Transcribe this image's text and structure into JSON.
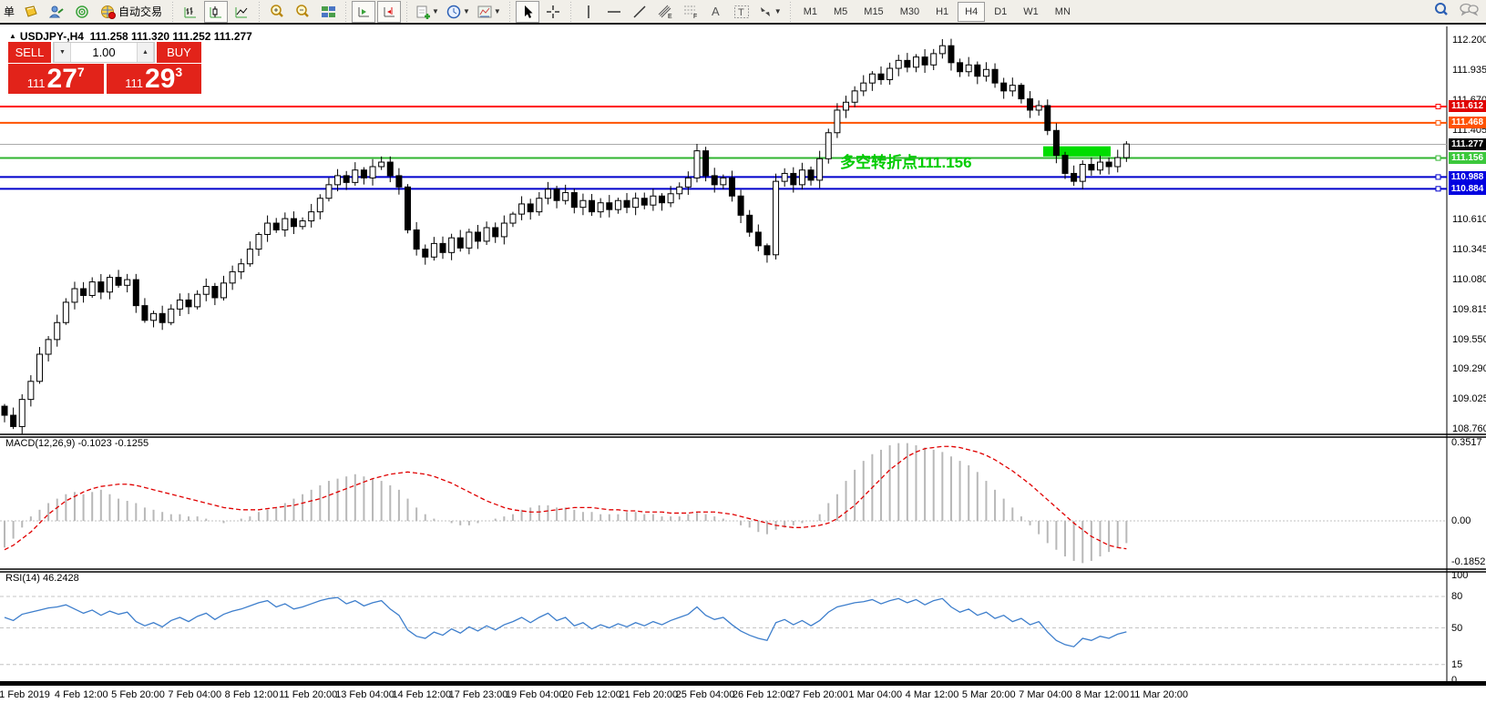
{
  "toolbar": {
    "order_button_label": "单",
    "auto_trading_label": "自动交易",
    "timeframes": [
      "M1",
      "M5",
      "M15",
      "M30",
      "H1",
      "H4",
      "D1",
      "W1",
      "MN"
    ],
    "active_timeframe": "H4",
    "icon_names": [
      "new-order",
      "history-book",
      "expert-advisor",
      "signals",
      "auto-trading",
      "bar-chart-mode",
      "candlestick-mode",
      "line-chart-mode",
      "zoom-in",
      "zoom-out",
      "tile-windows",
      "auto-scroll",
      "chart-shift",
      "new-chart",
      "periods",
      "templates",
      "cursor",
      "crosshair",
      "vertical-line",
      "horizontal-line",
      "trendline",
      "equidistant-channel",
      "fibonacci",
      "text",
      "text-label",
      "arrows",
      "search",
      "chat"
    ]
  },
  "chart_header": {
    "collapse_arrow": "▲",
    "symbol_title": "USDJPY-,H4",
    "ohlc": "111.258 111.320 111.252 111.277"
  },
  "trade_panel": {
    "sell_label": "SELL",
    "buy_label": "BUY",
    "volume_value": "1.00",
    "stepper_down": "▼",
    "stepper_up": "▲",
    "sell_price_prefix": "111",
    "sell_price_big": "27",
    "sell_price_sup": "7",
    "buy_price_prefix": "111",
    "buy_price_big": "29",
    "buy_price_sup": "3",
    "panel_color": "#e2231a"
  },
  "annotation": {
    "text": "多空转折点111.156",
    "color": "#00cc00"
  },
  "price_scale": {
    "ticks": [
      112.2,
      111.935,
      111.67,
      111.405,
      110.61,
      110.345,
      110.08,
      109.815,
      109.55,
      109.29,
      109.025,
      108.76
    ],
    "badges": [
      {
        "label": "111.612",
        "value": 111.612,
        "bg": "#e00000"
      },
      {
        "label": "111.468",
        "value": 111.468,
        "bg": "#ff5200"
      },
      {
        "label": "111.277",
        "value": 111.277,
        "bg": "#000000"
      },
      {
        "label": "111.156",
        "value": 111.156,
        "bg": "#3cc83c"
      },
      {
        "label": "110.988",
        "value": 110.988,
        "bg": "#0000e0"
      },
      {
        "label": "110.884",
        "value": 110.884,
        "bg": "#0000e0"
      }
    ]
  },
  "macd_pane": {
    "label": "MACD(12,26,9) -0.1023 -0.1255",
    "ticks": [
      {
        "v": 0.3517,
        "t": "0.3517"
      },
      {
        "v": 0.0,
        "t": "0.00"
      },
      {
        "v": -0.1852,
        "t": "-0.1852"
      }
    ]
  },
  "rsi_pane": {
    "label": "RSI(14) 46.2428",
    "ticks": [
      100,
      80,
      50,
      15,
      0
    ],
    "levels": [
      80,
      50,
      15
    ]
  },
  "time_axis": [
    "1 Feb 2019",
    "4 Feb 12:00",
    "5 Feb 20:00",
    "7 Feb 04:00",
    "8 Feb 12:00",
    "11 Feb 20:00",
    "13 Feb 04:00",
    "14 Feb 12:00",
    "17 Feb 23:00",
    "19 Feb 04:00",
    "20 Feb 12:00",
    "21 Feb 20:00",
    "25 Feb 04:00",
    "26 Feb 12:00",
    "27 Feb 20:00",
    "1 Mar 04:00",
    "4 Mar 12:00",
    "5 Mar 20:00",
    "7 Mar 04:00",
    "8 Mar 12:00",
    "11 Mar 20:00"
  ],
  "chart_data": [
    {
      "type": "candlestick",
      "title": "USDJPY- H4",
      "ylim": [
        108.76,
        112.33
      ],
      "closes": [
        108.88,
        108.78,
        109.02,
        109.18,
        109.42,
        109.55,
        109.7,
        109.88,
        110.0,
        109.94,
        110.06,
        109.97,
        110.1,
        110.03,
        110.08,
        109.85,
        109.72,
        109.78,
        109.7,
        109.82,
        109.9,
        109.84,
        109.95,
        110.02,
        109.92,
        110.05,
        110.15,
        110.22,
        110.35,
        110.48,
        110.58,
        110.52,
        110.62,
        110.55,
        110.6,
        110.68,
        110.8,
        110.92,
        111.0,
        110.94,
        111.05,
        110.98,
        111.08,
        111.12,
        111.0,
        110.9,
        110.52,
        110.35,
        110.28,
        110.4,
        110.32,
        110.45,
        110.36,
        110.5,
        110.42,
        110.54,
        110.46,
        110.58,
        110.66,
        110.75,
        110.68,
        110.8,
        110.88,
        110.78,
        110.85,
        110.72,
        110.78,
        110.68,
        110.76,
        110.7,
        110.78,
        110.72,
        110.8,
        110.74,
        110.82,
        110.76,
        110.84,
        110.9,
        110.98,
        111.22,
        111.0,
        110.92,
        110.98,
        110.82,
        110.65,
        110.5,
        110.38,
        110.3,
        110.95,
        111.02,
        110.92,
        111.05,
        110.96,
        111.15,
        111.38,
        111.58,
        111.65,
        111.75,
        111.82,
        111.9,
        111.85,
        111.95,
        112.02,
        111.96,
        112.05,
        111.98,
        112.08,
        112.15,
        112.0,
        111.92,
        111.98,
        111.88,
        111.94,
        111.82,
        111.75,
        111.8,
        111.68,
        111.58,
        111.62,
        111.4,
        111.18,
        111.02,
        110.95,
        111.1,
        111.05,
        111.12,
        111.08,
        111.16,
        111.28
      ],
      "hlines": [
        {
          "value": 111.612,
          "color": "#ff0000",
          "width": 2
        },
        {
          "value": 111.468,
          "color": "#ff5200",
          "width": 2
        },
        {
          "value": 111.277,
          "color": "#aaaaaa",
          "width": 1,
          "last_price": true
        },
        {
          "value": 111.156,
          "color": "#2fb42f",
          "width": 2
        },
        {
          "value": 110.988,
          "color": "#0000cc",
          "width": 2
        },
        {
          "value": 110.884,
          "color": "#0000cc",
          "width": 2
        }
      ],
      "highlight_box": {
        "from_index": 118.5,
        "to_index": 126.2,
        "price_top": 111.26,
        "price_bottom": 111.17,
        "color": "#00dd00"
      }
    },
    {
      "type": "bar",
      "title": "MACD(12,26,9)",
      "ylim": [
        -0.21,
        0.37
      ],
      "values": [
        -0.12,
        -0.08,
        -0.03,
        0.02,
        0.05,
        0.08,
        0.1,
        0.12,
        0.13,
        0.12,
        0.13,
        0.14,
        0.12,
        0.1,
        0.09,
        0.08,
        0.06,
        0.05,
        0.04,
        0.03,
        0.03,
        0.02,
        0.02,
        0.01,
        0.0,
        -0.01,
        0.0,
        0.01,
        0.02,
        0.04,
        0.05,
        0.06,
        0.08,
        0.1,
        0.12,
        0.14,
        0.16,
        0.18,
        0.19,
        0.2,
        0.21,
        0.2,
        0.19,
        0.18,
        0.16,
        0.14,
        0.1,
        0.06,
        0.03,
        0.01,
        0.0,
        -0.01,
        -0.02,
        -0.02,
        -0.01,
        0.0,
        0.01,
        0.02,
        0.03,
        0.05,
        0.06,
        0.07,
        0.07,
        0.06,
        0.06,
        0.05,
        0.04,
        0.04,
        0.03,
        0.03,
        0.03,
        0.04,
        0.04,
        0.03,
        0.03,
        0.02,
        0.02,
        0.02,
        0.03,
        0.04,
        0.03,
        0.02,
        0.01,
        0.0,
        -0.02,
        -0.03,
        -0.05,
        -0.06,
        -0.04,
        -0.03,
        -0.02,
        -0.01,
        0.0,
        0.03,
        0.08,
        0.12,
        0.18,
        0.23,
        0.27,
        0.3,
        0.32,
        0.34,
        0.35,
        0.35,
        0.34,
        0.33,
        0.32,
        0.31,
        0.29,
        0.27,
        0.25,
        0.22,
        0.18,
        0.14,
        0.1,
        0.06,
        0.02,
        -0.02,
        -0.06,
        -0.1,
        -0.13,
        -0.16,
        -0.18,
        -0.19,
        -0.18,
        -0.16,
        -0.14,
        -0.12,
        -0.1
      ],
      "signal": [
        -0.13,
        -0.11,
        -0.08,
        -0.05,
        -0.01,
        0.03,
        0.06,
        0.09,
        0.11,
        0.13,
        0.145,
        0.155,
        0.16,
        0.165,
        0.165,
        0.16,
        0.15,
        0.14,
        0.13,
        0.12,
        0.11,
        0.1,
        0.09,
        0.08,
        0.07,
        0.06,
        0.055,
        0.05,
        0.05,
        0.05,
        0.055,
        0.06,
        0.065,
        0.07,
        0.08,
        0.09,
        0.1,
        0.115,
        0.13,
        0.145,
        0.16,
        0.175,
        0.19,
        0.2,
        0.21,
        0.215,
        0.22,
        0.215,
        0.21,
        0.2,
        0.185,
        0.17,
        0.15,
        0.13,
        0.11,
        0.09,
        0.075,
        0.06,
        0.05,
        0.045,
        0.04,
        0.04,
        0.045,
        0.05,
        0.055,
        0.06,
        0.06,
        0.06,
        0.055,
        0.05,
        0.05,
        0.045,
        0.045,
        0.04,
        0.04,
        0.04,
        0.035,
        0.035,
        0.035,
        0.04,
        0.04,
        0.04,
        0.035,
        0.03,
        0.02,
        0.01,
        0.0,
        -0.01,
        -0.02,
        -0.025,
        -0.03,
        -0.03,
        -0.025,
        -0.02,
        -0.01,
        0.01,
        0.04,
        0.07,
        0.11,
        0.15,
        0.19,
        0.23,
        0.26,
        0.29,
        0.31,
        0.325,
        0.33,
        0.335,
        0.335,
        0.33,
        0.32,
        0.31,
        0.295,
        0.275,
        0.25,
        0.225,
        0.195,
        0.165,
        0.13,
        0.095,
        0.06,
        0.025,
        -0.01,
        -0.04,
        -0.07,
        -0.09,
        -0.11,
        -0.12,
        -0.1255
      ]
    },
    {
      "type": "line",
      "title": "RSI(14)",
      "ylim": [
        0,
        100
      ],
      "values": [
        60,
        57,
        63,
        65,
        67,
        69,
        70,
        72,
        68,
        64,
        67,
        62,
        66,
        63,
        65,
        56,
        52,
        55,
        51,
        57,
        60,
        56,
        61,
        64,
        58,
        63,
        66,
        68,
        71,
        74,
        76,
        70,
        73,
        68,
        70,
        73,
        76,
        78,
        79,
        73,
        76,
        71,
        74,
        76,
        68,
        62,
        48,
        42,
        40,
        46,
        43,
        49,
        45,
        51,
        47,
        52,
        48,
        53,
        56,
        60,
        55,
        60,
        64,
        57,
        60,
        52,
        55,
        49,
        53,
        50,
        54,
        51,
        55,
        52,
        56,
        53,
        57,
        60,
        63,
        70,
        62,
        58,
        60,
        53,
        47,
        43,
        40,
        38,
        55,
        58,
        53,
        57,
        52,
        57,
        65,
        70,
        72,
        74,
        75,
        77,
        73,
        76,
        78,
        74,
        77,
        72,
        76,
        78,
        70,
        65,
        68,
        62,
        65,
        59,
        62,
        56,
        59,
        53,
        56,
        46,
        38,
        34,
        32,
        40,
        38,
        42,
        40,
        44,
        46.2
      ]
    }
  ]
}
